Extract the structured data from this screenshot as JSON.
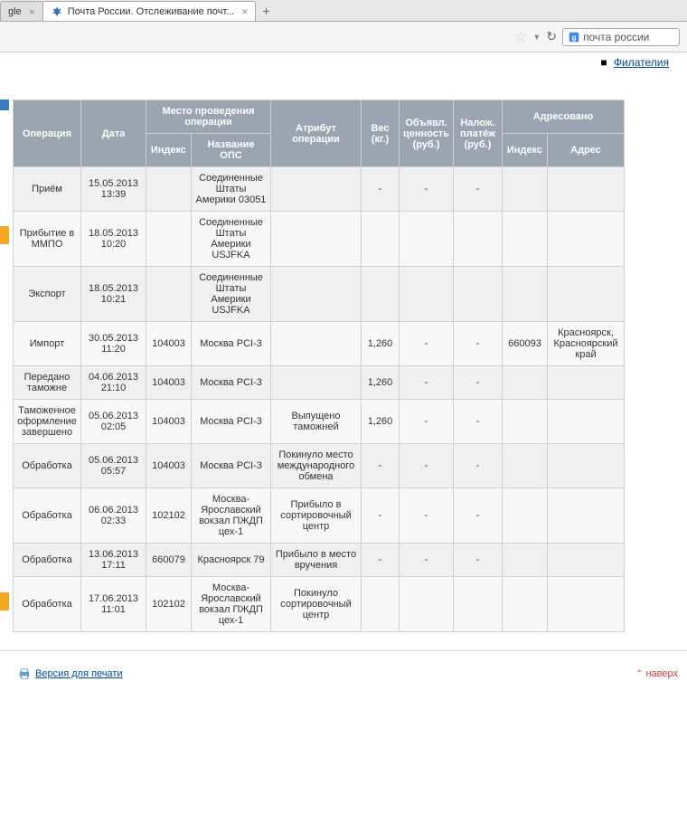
{
  "browser": {
    "tab_inactive_title": "gle",
    "tab_active_title": "Почта России. Отслеживание почт...",
    "search_text": "почта россии"
  },
  "top_link": "Филателия",
  "table": {
    "headers": {
      "operation": "Операция",
      "date": "Дата",
      "location_group": "Место проведения операции",
      "index": "Индекс",
      "ops_name": "Название ОПС",
      "attribute": "Атрибут операции",
      "weight": "Вес (кг.)",
      "declared_value": "Объявл. ценность (руб.)",
      "cod": "Налож. платёж (руб.)",
      "addressed_group": "Адресовано",
      "addr_index": "Индекс",
      "addr": "Адрес"
    },
    "rows": [
      {
        "op": "Приём",
        "date": "15.05.2013 13:39",
        "idx": "",
        "ops": "Соединенные Штаты Америки 03051",
        "attr": "",
        "wt": "-",
        "val": "-",
        "cod": "-",
        "aidx": "",
        "addr": ""
      },
      {
        "op": "Прибытие в ММПО",
        "date": "18.05.2013 10:20",
        "idx": "",
        "ops": "Соединенные Штаты Америки USJFKA",
        "attr": "",
        "wt": "",
        "val": "",
        "cod": "",
        "aidx": "",
        "addr": ""
      },
      {
        "op": "Экспорт",
        "date": "18.05.2013 10:21",
        "idx": "",
        "ops": "Соединенные Штаты Америки USJFKA",
        "attr": "",
        "wt": "",
        "val": "",
        "cod": "",
        "aidx": "",
        "addr": ""
      },
      {
        "op": "Импорт",
        "date": "30.05.2013 11:20",
        "idx": "104003",
        "ops": "Москва PCI-3",
        "attr": "",
        "wt": "1,260",
        "val": "-",
        "cod": "-",
        "aidx": "660093",
        "addr": "Красноярск, Красноярский край"
      },
      {
        "op": "Передано таможне",
        "date": "04.06.2013 21:10",
        "idx": "104003",
        "ops": "Москва PCI-3",
        "attr": "",
        "wt": "1,260",
        "val": "-",
        "cod": "-",
        "aidx": "",
        "addr": ""
      },
      {
        "op": "Таможенное оформление завершено",
        "date": "05.06.2013 02:05",
        "idx": "104003",
        "ops": "Москва PCI-3",
        "attr": "Выпущено таможней",
        "wt": "1,260",
        "val": "-",
        "cod": "-",
        "aidx": "",
        "addr": ""
      },
      {
        "op": "Обработка",
        "date": "05.06.2013 05:57",
        "idx": "104003",
        "ops": "Москва PCI-3",
        "attr": "Покинуло место международного обмена",
        "wt": "-",
        "val": "-",
        "cod": "-",
        "aidx": "",
        "addr": ""
      },
      {
        "op": "Обработка",
        "date": "06.06.2013 02:33",
        "idx": "102102",
        "ops": "Москва-Ярославский вокзал ПЖДП цех-1",
        "attr": "Прибыло в сортировочный центр",
        "wt": "-",
        "val": "-",
        "cod": "-",
        "aidx": "",
        "addr": ""
      },
      {
        "op": "Обработка",
        "date": "13.06.2013 17:11",
        "idx": "660079",
        "ops": "Красноярск 79",
        "attr": "Прибыло в место вручения",
        "wt": "-",
        "val": "-",
        "cod": "-",
        "aidx": "",
        "addr": ""
      },
      {
        "op": "Обработка",
        "date": "17.06.2013 11:01",
        "idx": "102102",
        "ops": "Москва-Ярославский вокзал ПЖДП цех-1",
        "attr": "Покинуло сортировочный центр",
        "wt": "",
        "val": "",
        "cod": "",
        "aidx": "",
        "addr": ""
      }
    ]
  },
  "footer": {
    "print": "Версия для печати",
    "top": "наверх"
  }
}
